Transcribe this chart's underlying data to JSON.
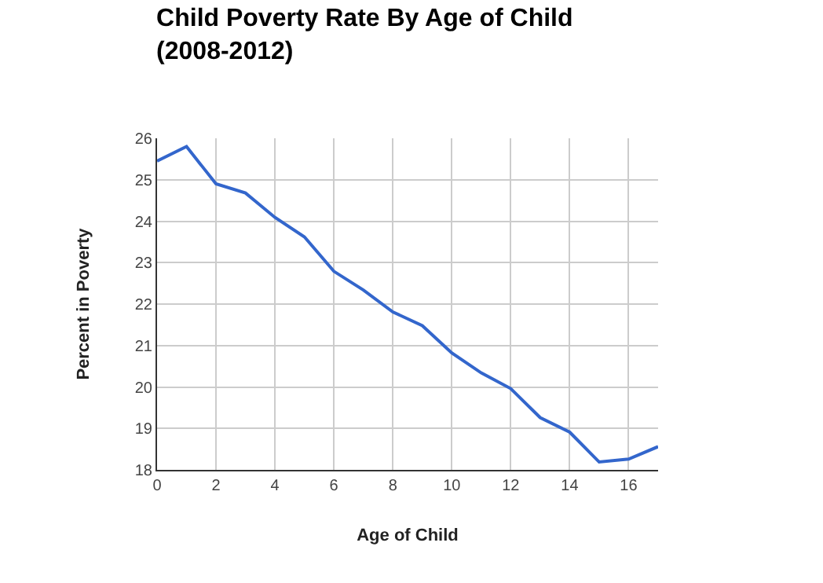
{
  "chart_data": {
    "type": "line",
    "title": "Child Poverty Rate By Age of Child\n(2008-2012)",
    "xlabel": "Age of Child",
    "ylabel": "Percent in Poverty",
    "x": [
      0,
      1,
      2,
      3,
      4,
      5,
      6,
      7,
      8,
      9,
      10,
      11,
      12,
      13,
      14,
      15,
      16,
      17
    ],
    "series": [
      {
        "color": "#3366cc",
        "values": [
          25.45,
          25.8,
          24.9,
          24.68,
          24.09,
          23.62,
          22.79,
          22.34,
          21.81,
          21.48,
          20.82,
          20.34,
          19.96,
          19.26,
          18.91,
          18.19,
          18.26,
          18.56
        ]
      }
    ],
    "xlim": [
      0,
      17
    ],
    "xticks": [
      0,
      2,
      4,
      6,
      8,
      10,
      12,
      14,
      16
    ],
    "ylim": [
      18,
      26
    ],
    "yticks": [
      18,
      19,
      20,
      21,
      22,
      23,
      24,
      25,
      26
    ],
    "grid": true,
    "legend": false,
    "marker": "none",
    "line_style": "solid"
  }
}
